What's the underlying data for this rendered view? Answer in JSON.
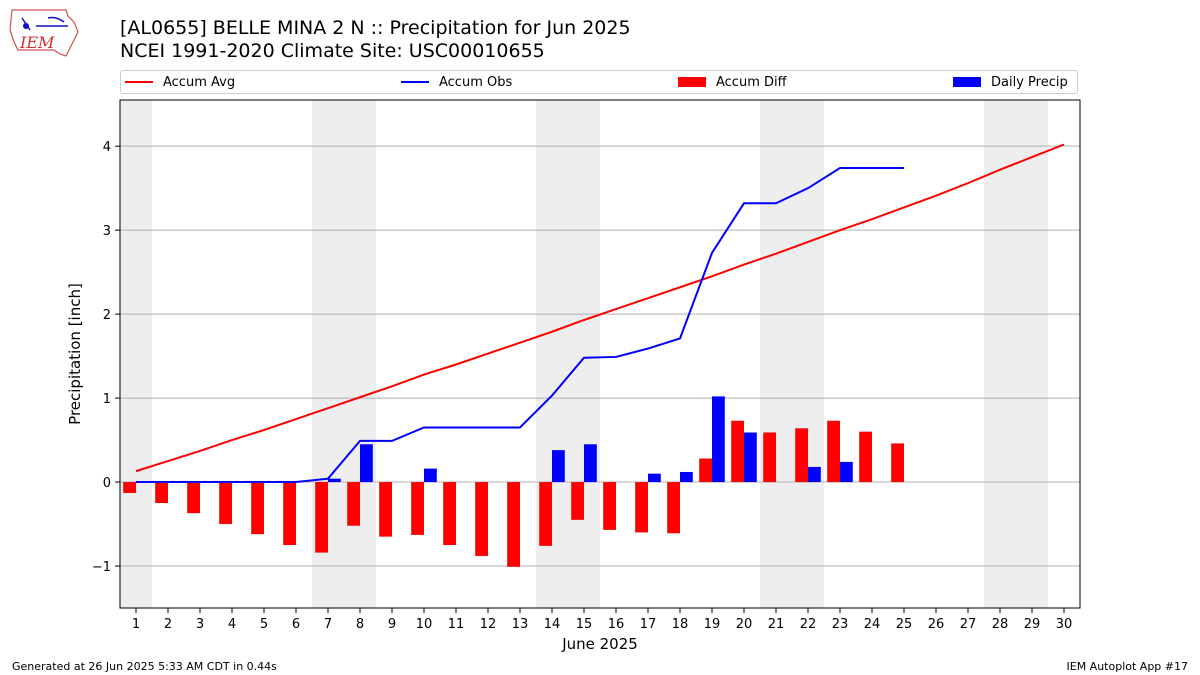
{
  "header": {
    "title_line1": "[AL0655] BELLE MINA 2 N :: Precipitation for Jun 2025",
    "title_line2": "NCEI 1991-2020 Climate Site: USC00010655",
    "logo_text": "IEM"
  },
  "footer": {
    "left": "Generated at 26 Jun 2025 5:33 AM CDT in 0.44s",
    "right": "IEM Autoplot App #17"
  },
  "legend": {
    "items": [
      {
        "label": "Accum Avg",
        "color": "#ff0000",
        "kind": "line"
      },
      {
        "label": "Accum Obs",
        "color": "#0000ff",
        "kind": "line"
      },
      {
        "label": "Accum Diff",
        "color": "#ff0000",
        "kind": "bar"
      },
      {
        "label": "Daily Precip",
        "color": "#0000ff",
        "kind": "bar"
      }
    ]
  },
  "chart_data": {
    "type": "bar",
    "xlabel": "June 2025",
    "ylabel": "Precipitation [inch]",
    "xlim": [
      0.5,
      30.5
    ],
    "ylim": [
      -1.5,
      4.55
    ],
    "yticks": [
      -1,
      0,
      1,
      2,
      3,
      4
    ],
    "ytick_labels": [
      "−1",
      "0",
      "1",
      "2",
      "3",
      "4"
    ],
    "days": [
      1,
      2,
      3,
      4,
      5,
      6,
      7,
      8,
      9,
      10,
      11,
      12,
      13,
      14,
      15,
      16,
      17,
      18,
      19,
      20,
      21,
      22,
      23,
      24,
      25,
      26,
      27,
      28,
      29,
      30
    ],
    "weekend_shading": [
      [
        0.5,
        1.5
      ],
      [
        6.5,
        8.5
      ],
      [
        13.5,
        15.5
      ],
      [
        20.5,
        22.5
      ],
      [
        27.5,
        29.5
      ]
    ],
    "grid": "horizontal",
    "colors": {
      "avg": "#ff0000",
      "obs": "#0000ff",
      "diff": "#ff0000",
      "precip": "#0000ff",
      "shade": "#eeeeee",
      "grid": "#b0b0b0"
    },
    "series": [
      {
        "name": "Accum Avg",
        "kind": "line",
        "values": [
          0.13,
          0.25,
          0.37,
          0.5,
          0.62,
          0.75,
          0.88,
          1.01,
          1.14,
          1.28,
          1.4,
          1.53,
          1.66,
          1.79,
          1.93,
          2.06,
          2.19,
          2.32,
          2.45,
          2.59,
          2.72,
          2.86,
          3.0,
          3.13,
          3.27,
          3.41,
          3.56,
          3.72,
          3.87,
          4.02
        ]
      },
      {
        "name": "Accum Obs",
        "kind": "line",
        "values": [
          0,
          0,
          0,
          0,
          0,
          0,
          0.04,
          0.49,
          0.49,
          0.65,
          0.65,
          0.65,
          0.65,
          1.03,
          1.48,
          1.49,
          1.59,
          1.71,
          2.73,
          3.32,
          3.32,
          3.5,
          3.74,
          3.74,
          3.74
        ]
      },
      {
        "name": "Accum Diff",
        "kind": "bar",
        "values": [
          -0.13,
          -0.25,
          -0.37,
          -0.5,
          -0.62,
          -0.75,
          -0.84,
          -0.52,
          -0.65,
          -0.63,
          -0.75,
          -0.88,
          -1.01,
          -0.76,
          -0.45,
          -0.57,
          -0.6,
          -0.61,
          0.28,
          0.73,
          0.59,
          0.64,
          0.73,
          0.6,
          0.46
        ]
      },
      {
        "name": "Daily Precip",
        "kind": "bar",
        "values": [
          0,
          0,
          0,
          0,
          0,
          0,
          0.04,
          0.45,
          0,
          0.16,
          0,
          0,
          0,
          0.38,
          0.45,
          0,
          0.1,
          0.12,
          1.02,
          0.59,
          0,
          0.18,
          0.24,
          0,
          0
        ]
      }
    ]
  }
}
